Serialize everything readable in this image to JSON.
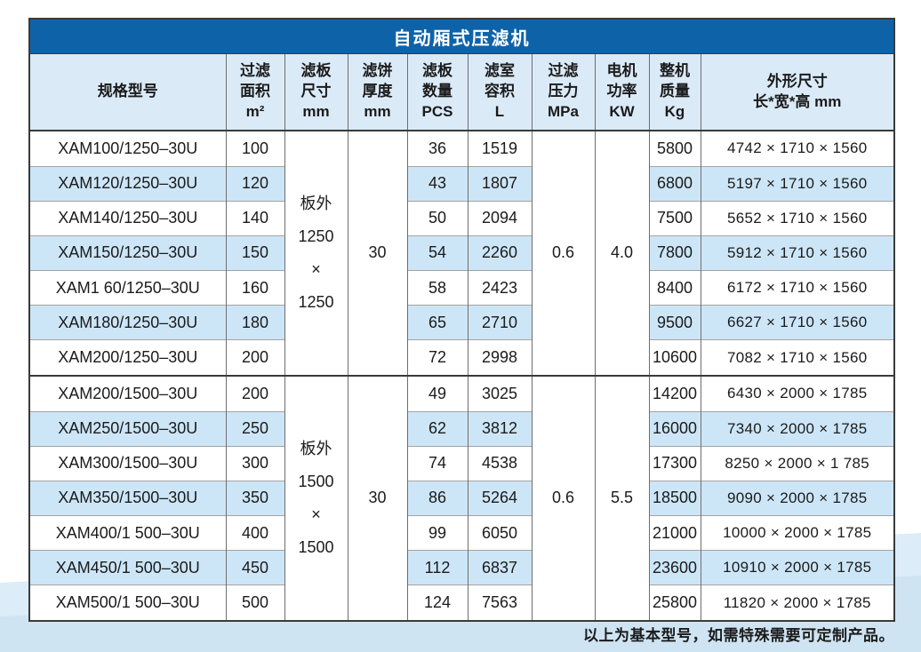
{
  "page": {
    "title": "自动厢式压滤机",
    "footer_note": "以上为基本型号，如需特殊需要可定制产品。"
  },
  "colors": {
    "title_bar_bg": "#0e63a8",
    "title_text": "#ffffff",
    "header_bg": "#dbeaf7",
    "stripe_bg": "#cde6f7",
    "row_bg": "#ffffff",
    "page_bg": "#ffffff",
    "band_light": "#dcedf9",
    "band_main": "#cfe4f2",
    "border_dark": "#3a3a3a",
    "border_mid": "#6e6e6e",
    "border_light": "#a3a3a3",
    "text": "#1b1b1b"
  },
  "table": {
    "headers": [
      {
        "id": "model",
        "lines": [
          "规格型号"
        ]
      },
      {
        "id": "area",
        "lines": [
          "过滤",
          "面积",
          "m²"
        ]
      },
      {
        "id": "plate-size",
        "lines": [
          "滤板",
          "尺寸",
          "mm"
        ]
      },
      {
        "id": "cake-thickness",
        "lines": [
          "滤饼",
          "厚度",
          "mm"
        ]
      },
      {
        "id": "pcs",
        "lines": [
          "滤板",
          "数量",
          "PCS"
        ]
      },
      {
        "id": "volume",
        "lines": [
          "滤室",
          "容积",
          "L"
        ]
      },
      {
        "id": "pressure",
        "lines": [
          "过滤",
          "压力",
          "MPa"
        ]
      },
      {
        "id": "power",
        "lines": [
          "电机",
          "功率",
          "KW"
        ]
      },
      {
        "id": "weight",
        "lines": [
          "整机",
          "质量",
          "Kg"
        ]
      },
      {
        "id": "dimensions",
        "lines": [
          "外形尺寸",
          "长*宽*高 mm"
        ]
      }
    ],
    "groups": [
      {
        "plate_size_lines": [
          "板外",
          "1250",
          "×",
          "1250"
        ],
        "cake_thickness": "30",
        "pressure": "0.6",
        "power": "4.0",
        "rows": [
          {
            "model": "XAM100/1250–30U",
            "area": "100",
            "pcs": "36",
            "volume": "1519",
            "weight": "5800",
            "dimensions": "4742 × 1710 × 1560"
          },
          {
            "model": "XAM120/1250–30U",
            "area": "120",
            "pcs": "43",
            "volume": "1807",
            "weight": "6800",
            "dimensions": "5197  × 1710 × 1560"
          },
          {
            "model": "XAM140/1250–30U",
            "area": "140",
            "pcs": "50",
            "volume": "2094",
            "weight": "7500",
            "dimensions": "5652 × 1710 × 1560"
          },
          {
            "model": "XAM150/1250–30U",
            "area": "150",
            "pcs": "54",
            "volume": "2260",
            "weight": "7800",
            "dimensions": "5912 × 1710 × 1560"
          },
          {
            "model": "XAM1 60/1250–30U",
            "area": "160",
            "pcs": "58",
            "volume": "2423",
            "weight": "8400",
            "dimensions": "6172 × 1710 × 1560"
          },
          {
            "model": "XAM180/1250–30U",
            "area": "180",
            "pcs": "65",
            "volume": "2710",
            "weight": "9500",
            "dimensions": "6627 × 1710 × 1560"
          },
          {
            "model": "XAM200/1250–30U",
            "area": "200",
            "pcs": "72",
            "volume": "2998",
            "weight": "10600",
            "dimensions": "7082 × 1710 × 1560"
          }
        ]
      },
      {
        "plate_size_lines": [
          "板外",
          "1500",
          "×",
          "1500"
        ],
        "cake_thickness": "30",
        "pressure": "0.6",
        "power": "5.5",
        "rows": [
          {
            "model": "XAM200/1500–30U",
            "area": "200",
            "pcs": "49",
            "volume": "3025",
            "weight": "14200",
            "dimensions": "6430 × 2000 × 1785"
          },
          {
            "model": "XAM250/1500–30U",
            "area": "250",
            "pcs": "62",
            "volume": "3812",
            "weight": "16000",
            "dimensions": "7340 × 2000 × 1785"
          },
          {
            "model": "XAM300/1500–30U",
            "area": "300",
            "pcs": "74",
            "volume": "4538",
            "weight": "17300",
            "dimensions": "8250 ×  2000 × 1 785"
          },
          {
            "model": "XAM350/1500–30U",
            "area": "350",
            "pcs": "86",
            "volume": "5264",
            "weight": "18500",
            "dimensions": "9090 × 2000 ×  1785"
          },
          {
            "model": "XAM400/1 500–30U",
            "area": "400",
            "pcs": "99",
            "volume": "6050",
            "weight": "21000",
            "dimensions": "10000 × 2000 × 1785"
          },
          {
            "model": "XAM450/1 500–30U",
            "area": "450",
            "pcs": "112",
            "volume": "6837",
            "weight": "23600",
            "dimensions": "10910 × 2000 × 1785"
          },
          {
            "model": "XAM500/1 500–30U",
            "area": "500",
            "pcs": "124",
            "volume": "7563",
            "weight": "25800",
            "dimensions": "11820 × 2000 × 1785"
          }
        ]
      }
    ]
  }
}
